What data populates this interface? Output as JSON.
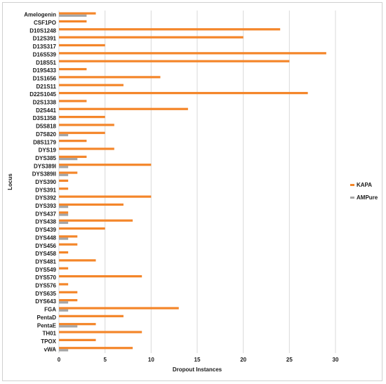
{
  "chart_data": {
    "type": "bar",
    "orientation": "horizontal",
    "xlabel": "Dropout Instances",
    "ylabel": "Locus",
    "xlim": [
      0,
      30
    ],
    "xticks": [
      "0",
      "5",
      "10",
      "15",
      "20",
      "25",
      "30"
    ],
    "grid": "vertical",
    "legend": "right",
    "categories": [
      "Amelogenin",
      "CSF1PO",
      "D10S1248",
      "D12S391",
      "D13S317",
      "D16S539",
      "D18S51",
      "D19S433",
      "D1S1656",
      "D21S11",
      "D22S1045",
      "D2S1338",
      "D2S441",
      "D3S1358",
      "D5S818",
      "D7S820",
      "D8S1179",
      "DYS19",
      "DYS385",
      "DYS389I",
      "DYS389II",
      "DYS390",
      "DYS391",
      "DYS392",
      "DYS393",
      "DYS437",
      "DYS438",
      "DYS439",
      "DYS448",
      "DYS456",
      "DYS458",
      "DYS481",
      "DYS549",
      "DYS570",
      "DYS576",
      "DYS635",
      "DYS643",
      "FGA",
      "PentaD",
      "PentaE",
      "TH01",
      "TPOX",
      "vWA"
    ],
    "series": [
      {
        "name": "KAPA",
        "color": "#f4862a",
        "values": [
          4,
          3,
          24,
          20,
          5,
          29,
          25,
          3,
          11,
          7,
          27,
          3,
          14,
          5,
          6,
          5,
          3,
          6,
          3,
          10,
          2,
          1,
          1,
          10,
          7,
          1,
          8,
          5,
          2,
          2,
          1,
          4,
          1,
          9,
          1,
          2,
          2,
          13,
          7,
          4,
          9,
          4,
          8
        ]
      },
      {
        "name": "AMPure",
        "color": "#a5a5a5",
        "values": [
          3,
          0,
          0,
          0,
          0,
          0,
          0,
          0,
          0,
          0,
          0,
          0,
          0,
          0,
          0,
          1,
          0,
          0,
          2,
          1,
          1,
          0,
          0,
          0,
          1,
          1,
          1,
          0,
          1,
          0,
          0,
          0,
          0,
          0,
          0,
          0,
          1,
          1,
          0,
          2,
          0,
          0,
          1
        ]
      }
    ]
  }
}
